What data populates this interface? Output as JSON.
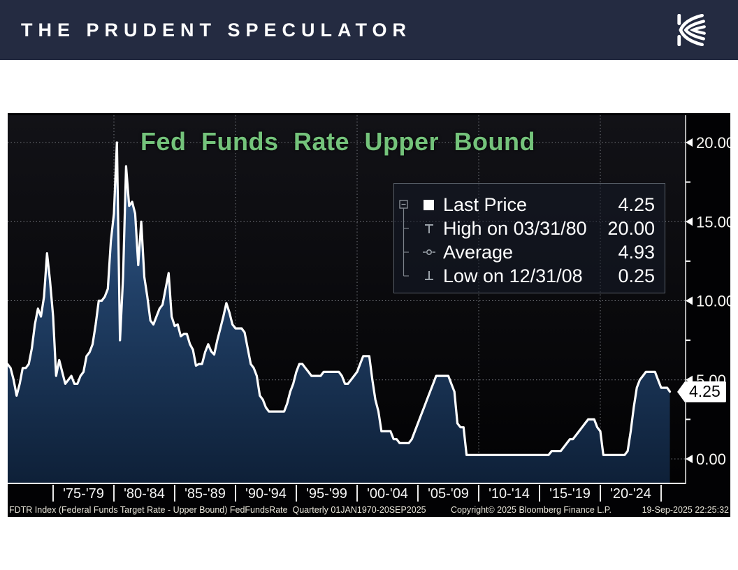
{
  "header": {
    "title": "THE PRUDENT SPECULATOR",
    "background_color": "#242b41",
    "logo_icon": "kovitz-k-monogram"
  },
  "chart": {
    "title": "Fed Funds Rate Upper Bound",
    "title_color": "#74c37b",
    "line_color": "#ffffff",
    "legend": {
      "rows": [
        {
          "marker": "last-price-square",
          "label": "Last Price",
          "value": "4.25"
        },
        {
          "marker": "high-whisker",
          "label": "High on 03/31/80",
          "value": "20.00"
        },
        {
          "marker": "average-dash",
          "label": "Average",
          "value": "4.93"
        },
        {
          "marker": "low-whisker",
          "label": "Low on 12/31/08",
          "value": "0.25"
        }
      ]
    },
    "y_axis": {
      "ticks": [
        {
          "label": "20.00",
          "value": 20
        },
        {
          "label": "15.00",
          "value": 15
        },
        {
          "label": "10.00",
          "value": 10
        },
        {
          "label": "5.00",
          "value": 5
        },
        {
          "label": "0.00",
          "value": 0
        }
      ],
      "minor_ticks": [
        17.5,
        12.5,
        7.5,
        2.5
      ],
      "last_price_tag": {
        "label": "4.25",
        "value": 4.25
      }
    },
    "x_axis": {
      "labels": [
        "'75-'79",
        "'80-'84",
        "'85-'89",
        "'90-'94",
        "'95-'99",
        "'00-'04",
        "'05-'09",
        "'10-'14",
        "'15-'19",
        "'20-'24"
      ]
    },
    "footer": {
      "left": "FDTR Index (Federal Funds Target Rate - Upper Bound) FedFundsRate  Quarterly 01JAN1970-20SEP2025",
      "center": "Copyright© 2025 Bloomberg Finance L.P.",
      "right": "19-Sep-2025 22:25:32"
    }
  },
  "chart_data": {
    "type": "area",
    "title": "Fed Funds Rate Upper Bound",
    "xlabel": "",
    "ylabel": "",
    "ylim": [
      0,
      20
    ],
    "y_ticks": [
      0,
      5,
      10,
      15,
      20
    ],
    "x_range_decimal_years": [
      1971.25,
      2025.72
    ],
    "date_range": "01JAN1970-20SEP2025",
    "frequency": "Quarterly",
    "grid": "dotted",
    "legend_position": "upper right",
    "decade_gridlines": [
      1980,
      1990,
      2000,
      2010,
      2020
    ],
    "x_bin_edges_years": [
      1975,
      1980,
      1985,
      1990,
      1995,
      2000,
      2005,
      2010,
      2015,
      2020,
      2025
    ],
    "stats": {
      "last_price": 4.25,
      "high_date": "03/31/80",
      "high": 20.0,
      "average": 4.93,
      "low_date": "12/31/08",
      "low": 0.25
    },
    "series": [
      {
        "name": "FDTR Index (Federal Funds Target Rate - Upper Bound)",
        "points": [
          [
            1971.25,
            6.0
          ],
          [
            1971.5,
            5.75
          ],
          [
            1971.75,
            5.0
          ],
          [
            1972.0,
            4.0
          ],
          [
            1972.25,
            4.75
          ],
          [
            1972.5,
            5.75
          ],
          [
            1972.75,
            5.75
          ],
          [
            1973.0,
            6.0
          ],
          [
            1973.25,
            7.0
          ],
          [
            1973.5,
            8.5
          ],
          [
            1973.75,
            9.5
          ],
          [
            1974.0,
            9.0
          ],
          [
            1974.25,
            10.25
          ],
          [
            1974.5,
            13.0
          ],
          [
            1974.75,
            11.25
          ],
          [
            1975.0,
            9.0
          ],
          [
            1975.25,
            5.25
          ],
          [
            1975.5,
            6.25
          ],
          [
            1975.75,
            5.5
          ],
          [
            1976.0,
            4.75
          ],
          [
            1976.25,
            5.0
          ],
          [
            1976.5,
            5.25
          ],
          [
            1976.75,
            4.75
          ],
          [
            1977.0,
            4.75
          ],
          [
            1977.25,
            5.25
          ],
          [
            1977.5,
            5.5
          ],
          [
            1977.75,
            6.5
          ],
          [
            1978.0,
            6.75
          ],
          [
            1978.25,
            7.25
          ],
          [
            1978.5,
            8.5
          ],
          [
            1978.75,
            10.0
          ],
          [
            1979.0,
            10.0
          ],
          [
            1979.25,
            10.25
          ],
          [
            1979.5,
            10.75
          ],
          [
            1979.75,
            13.75
          ],
          [
            1980.0,
            15.5
          ],
          [
            1980.25,
            20.0
          ],
          [
            1980.5,
            7.5
          ],
          [
            1980.75,
            11.5
          ],
          [
            1981.0,
            18.5
          ],
          [
            1981.25,
            16.0
          ],
          [
            1981.5,
            16.25
          ],
          [
            1981.75,
            15.5
          ],
          [
            1982.0,
            12.25
          ],
          [
            1982.25,
            15.0
          ],
          [
            1982.5,
            11.5
          ],
          [
            1982.75,
            10.25
          ],
          [
            1983.0,
            8.75
          ],
          [
            1983.25,
            8.5
          ],
          [
            1983.5,
            9.0
          ],
          [
            1983.75,
            9.5
          ],
          [
            1984.0,
            9.75
          ],
          [
            1984.25,
            10.75
          ],
          [
            1984.5,
            11.75
          ],
          [
            1984.75,
            9.0
          ],
          [
            1985.0,
            8.4
          ],
          [
            1985.25,
            8.5
          ],
          [
            1985.5,
            7.75
          ],
          [
            1985.75,
            7.9
          ],
          [
            1986.0,
            7.9
          ],
          [
            1986.25,
            7.25
          ],
          [
            1986.5,
            6.9
          ],
          [
            1986.75,
            5.9
          ],
          [
            1987.0,
            6.0
          ],
          [
            1987.25,
            6.0
          ],
          [
            1987.5,
            6.75
          ],
          [
            1987.75,
            7.25
          ],
          [
            1988.0,
            6.8
          ],
          [
            1988.25,
            6.6
          ],
          [
            1988.5,
            7.5
          ],
          [
            1988.75,
            8.25
          ],
          [
            1989.0,
            9.0
          ],
          [
            1989.25,
            9.85
          ],
          [
            1989.5,
            9.25
          ],
          [
            1989.75,
            8.5
          ],
          [
            1990.0,
            8.25
          ],
          [
            1990.25,
            8.25
          ],
          [
            1990.5,
            8.25
          ],
          [
            1990.75,
            8.0
          ],
          [
            1991.0,
            7.0
          ],
          [
            1991.25,
            6.0
          ],
          [
            1991.5,
            5.75
          ],
          [
            1991.75,
            5.25
          ],
          [
            1992.0,
            4.0
          ],
          [
            1992.25,
            3.75
          ],
          [
            1992.5,
            3.25
          ],
          [
            1992.75,
            3.0
          ],
          [
            1993.0,
            3.0
          ],
          [
            1993.25,
            3.0
          ],
          [
            1993.5,
            3.0
          ],
          [
            1993.75,
            3.0
          ],
          [
            1994.0,
            3.0
          ],
          [
            1994.25,
            3.5
          ],
          [
            1994.5,
            4.25
          ],
          [
            1994.75,
            4.75
          ],
          [
            1995.0,
            5.5
          ],
          [
            1995.25,
            6.0
          ],
          [
            1995.5,
            6.0
          ],
          [
            1995.75,
            5.75
          ],
          [
            1996.0,
            5.5
          ],
          [
            1996.25,
            5.25
          ],
          [
            1996.5,
            5.25
          ],
          [
            1996.75,
            5.25
          ],
          [
            1997.0,
            5.25
          ],
          [
            1997.25,
            5.5
          ],
          [
            1997.5,
            5.5
          ],
          [
            1997.75,
            5.5
          ],
          [
            1998.0,
            5.5
          ],
          [
            1998.25,
            5.5
          ],
          [
            1998.5,
            5.5
          ],
          [
            1998.75,
            5.25
          ],
          [
            1999.0,
            4.75
          ],
          [
            1999.25,
            4.75
          ],
          [
            1999.5,
            5.0
          ],
          [
            1999.75,
            5.25
          ],
          [
            2000.0,
            5.5
          ],
          [
            2000.25,
            6.0
          ],
          [
            2000.5,
            6.5
          ],
          [
            2000.75,
            6.5
          ],
          [
            2001.0,
            6.5
          ],
          [
            2001.25,
            5.0
          ],
          [
            2001.5,
            3.75
          ],
          [
            2001.75,
            3.0
          ],
          [
            2002.0,
            1.75
          ],
          [
            2002.25,
            1.75
          ],
          [
            2002.5,
            1.75
          ],
          [
            2002.75,
            1.75
          ],
          [
            2003.0,
            1.25
          ],
          [
            2003.25,
            1.25
          ],
          [
            2003.5,
            1.0
          ],
          [
            2003.75,
            1.0
          ],
          [
            2004.0,
            1.0
          ],
          [
            2004.25,
            1.0
          ],
          [
            2004.5,
            1.25
          ],
          [
            2004.75,
            1.75
          ],
          [
            2005.0,
            2.25
          ],
          [
            2005.25,
            2.75
          ],
          [
            2005.5,
            3.25
          ],
          [
            2005.75,
            3.75
          ],
          [
            2006.0,
            4.25
          ],
          [
            2006.25,
            4.75
          ],
          [
            2006.5,
            5.25
          ],
          [
            2006.75,
            5.25
          ],
          [
            2007.0,
            5.25
          ],
          [
            2007.25,
            5.25
          ],
          [
            2007.5,
            5.25
          ],
          [
            2007.75,
            4.75
          ],
          [
            2008.0,
            4.25
          ],
          [
            2008.25,
            2.25
          ],
          [
            2008.5,
            2.0
          ],
          [
            2008.75,
            2.0
          ],
          [
            2009.0,
            0.25
          ],
          [
            2009.25,
            0.25
          ],
          [
            2009.5,
            0.25
          ],
          [
            2009.75,
            0.25
          ],
          [
            2010.0,
            0.25
          ],
          [
            2010.25,
            0.25
          ],
          [
            2010.5,
            0.25
          ],
          [
            2010.75,
            0.25
          ],
          [
            2011.0,
            0.25
          ],
          [
            2011.25,
            0.25
          ],
          [
            2011.5,
            0.25
          ],
          [
            2011.75,
            0.25
          ],
          [
            2012.0,
            0.25
          ],
          [
            2012.25,
            0.25
          ],
          [
            2012.5,
            0.25
          ],
          [
            2012.75,
            0.25
          ],
          [
            2013.0,
            0.25
          ],
          [
            2013.25,
            0.25
          ],
          [
            2013.5,
            0.25
          ],
          [
            2013.75,
            0.25
          ],
          [
            2014.0,
            0.25
          ],
          [
            2014.25,
            0.25
          ],
          [
            2014.5,
            0.25
          ],
          [
            2014.75,
            0.25
          ],
          [
            2015.0,
            0.25
          ],
          [
            2015.25,
            0.25
          ],
          [
            2015.5,
            0.25
          ],
          [
            2015.75,
            0.25
          ],
          [
            2016.0,
            0.5
          ],
          [
            2016.25,
            0.5
          ],
          [
            2016.5,
            0.5
          ],
          [
            2016.75,
            0.5
          ],
          [
            2017.0,
            0.75
          ],
          [
            2017.25,
            1.0
          ],
          [
            2017.5,
            1.25
          ],
          [
            2017.75,
            1.25
          ],
          [
            2018.0,
            1.5
          ],
          [
            2018.25,
            1.75
          ],
          [
            2018.5,
            2.0
          ],
          [
            2018.75,
            2.25
          ],
          [
            2019.0,
            2.5
          ],
          [
            2019.25,
            2.5
          ],
          [
            2019.5,
            2.5
          ],
          [
            2019.75,
            2.0
          ],
          [
            2020.0,
            1.75
          ],
          [
            2020.25,
            0.25
          ],
          [
            2020.5,
            0.25
          ],
          [
            2020.75,
            0.25
          ],
          [
            2021.0,
            0.25
          ],
          [
            2021.25,
            0.25
          ],
          [
            2021.5,
            0.25
          ],
          [
            2021.75,
            0.25
          ],
          [
            2022.0,
            0.25
          ],
          [
            2022.25,
            0.5
          ],
          [
            2022.5,
            1.75
          ],
          [
            2022.75,
            3.25
          ],
          [
            2023.0,
            4.5
          ],
          [
            2023.25,
            5.0
          ],
          [
            2023.5,
            5.25
          ],
          [
            2023.75,
            5.5
          ],
          [
            2024.0,
            5.5
          ],
          [
            2024.25,
            5.5
          ],
          [
            2024.5,
            5.5
          ],
          [
            2024.75,
            5.0
          ],
          [
            2025.0,
            4.5
          ],
          [
            2025.25,
            4.5
          ],
          [
            2025.5,
            4.5
          ],
          [
            2025.72,
            4.25
          ]
        ]
      }
    ]
  }
}
